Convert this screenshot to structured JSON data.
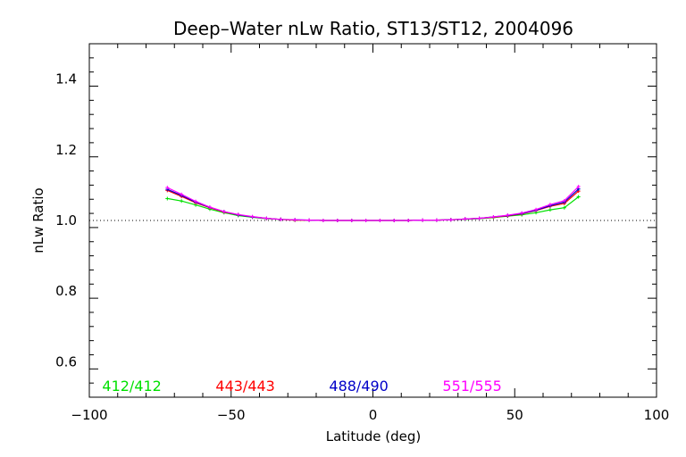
{
  "chart_data": {
    "type": "line",
    "title": "Deep–Water nLw Ratio, ST13/ST12, 2004096",
    "xlabel": "Latitude (deg)",
    "ylabel": "nLw Ratio",
    "xlim": [
      -100,
      100
    ],
    "ylim": [
      0.5,
      1.5
    ],
    "xticks": [
      -100,
      -50,
      0,
      50,
      100
    ],
    "xtick_labels": [
      "−100",
      "−50",
      "0",
      "50",
      "100"
    ],
    "yticks": [
      0.6,
      0.8,
      1.0,
      1.2,
      1.4
    ],
    "ytick_labels": [
      "0.6",
      "0.8",
      "1.0",
      "1.2",
      "1.4"
    ],
    "reference_line": {
      "y": 1.0,
      "style": "dotted"
    },
    "grid": false,
    "legend_position": "bottom",
    "x": [
      -72.5,
      -67.5,
      -62.5,
      -57.5,
      -52.5,
      -47.5,
      -42.5,
      -37.5,
      -32.5,
      -27.5,
      -22.5,
      -17.5,
      -12.5,
      -7.5,
      -2.5,
      2.5,
      7.5,
      12.5,
      17.5,
      22.5,
      27.5,
      32.5,
      37.5,
      42.5,
      47.5,
      52.5,
      57.5,
      62.5,
      67.5,
      72.5
    ],
    "series": [
      {
        "name": "412/412",
        "color": "#00e000",
        "values": [
          1.062,
          1.055,
          1.044,
          1.032,
          1.022,
          1.014,
          1.009,
          1.005,
          1.003,
          1.001,
          1.001,
          1.0,
          1.0,
          1.0,
          1.0,
          1.0,
          1.0,
          1.0,
          1.001,
          1.001,
          1.002,
          1.003,
          1.005,
          1.008,
          1.012,
          1.016,
          1.022,
          1.03,
          1.036,
          1.067
        ]
      },
      {
        "name": "443/443",
        "color": "#ff0000",
        "values": [
          1.085,
          1.068,
          1.05,
          1.036,
          1.024,
          1.016,
          1.01,
          1.006,
          1.003,
          1.001,
          1.001,
          1.0,
          1.0,
          1.0,
          1.0,
          1.0,
          1.0,
          1.0,
          1.001,
          1.001,
          1.002,
          1.004,
          1.006,
          1.009,
          1.013,
          1.019,
          1.028,
          1.04,
          1.048,
          1.083
        ]
      },
      {
        "name": "488/490",
        "color": "#0000c8",
        "values": [
          1.088,
          1.071,
          1.052,
          1.037,
          1.025,
          1.016,
          1.01,
          1.006,
          1.003,
          1.002,
          1.001,
          1.0,
          1.0,
          1.0,
          1.0,
          1.0,
          1.0,
          1.0,
          1.001,
          1.001,
          1.002,
          1.004,
          1.006,
          1.01,
          1.014,
          1.02,
          1.029,
          1.042,
          1.052,
          1.089
        ]
      },
      {
        "name": "551/555",
        "color": "#ff00ff",
        "values": [
          1.093,
          1.074,
          1.054,
          1.038,
          1.025,
          1.017,
          1.011,
          1.006,
          1.003,
          1.002,
          1.001,
          1.0,
          1.0,
          1.0,
          1.0,
          1.0,
          1.0,
          1.0,
          1.001,
          1.001,
          1.002,
          1.004,
          1.006,
          1.01,
          1.015,
          1.021,
          1.031,
          1.045,
          1.056,
          1.096
        ]
      }
    ]
  }
}
